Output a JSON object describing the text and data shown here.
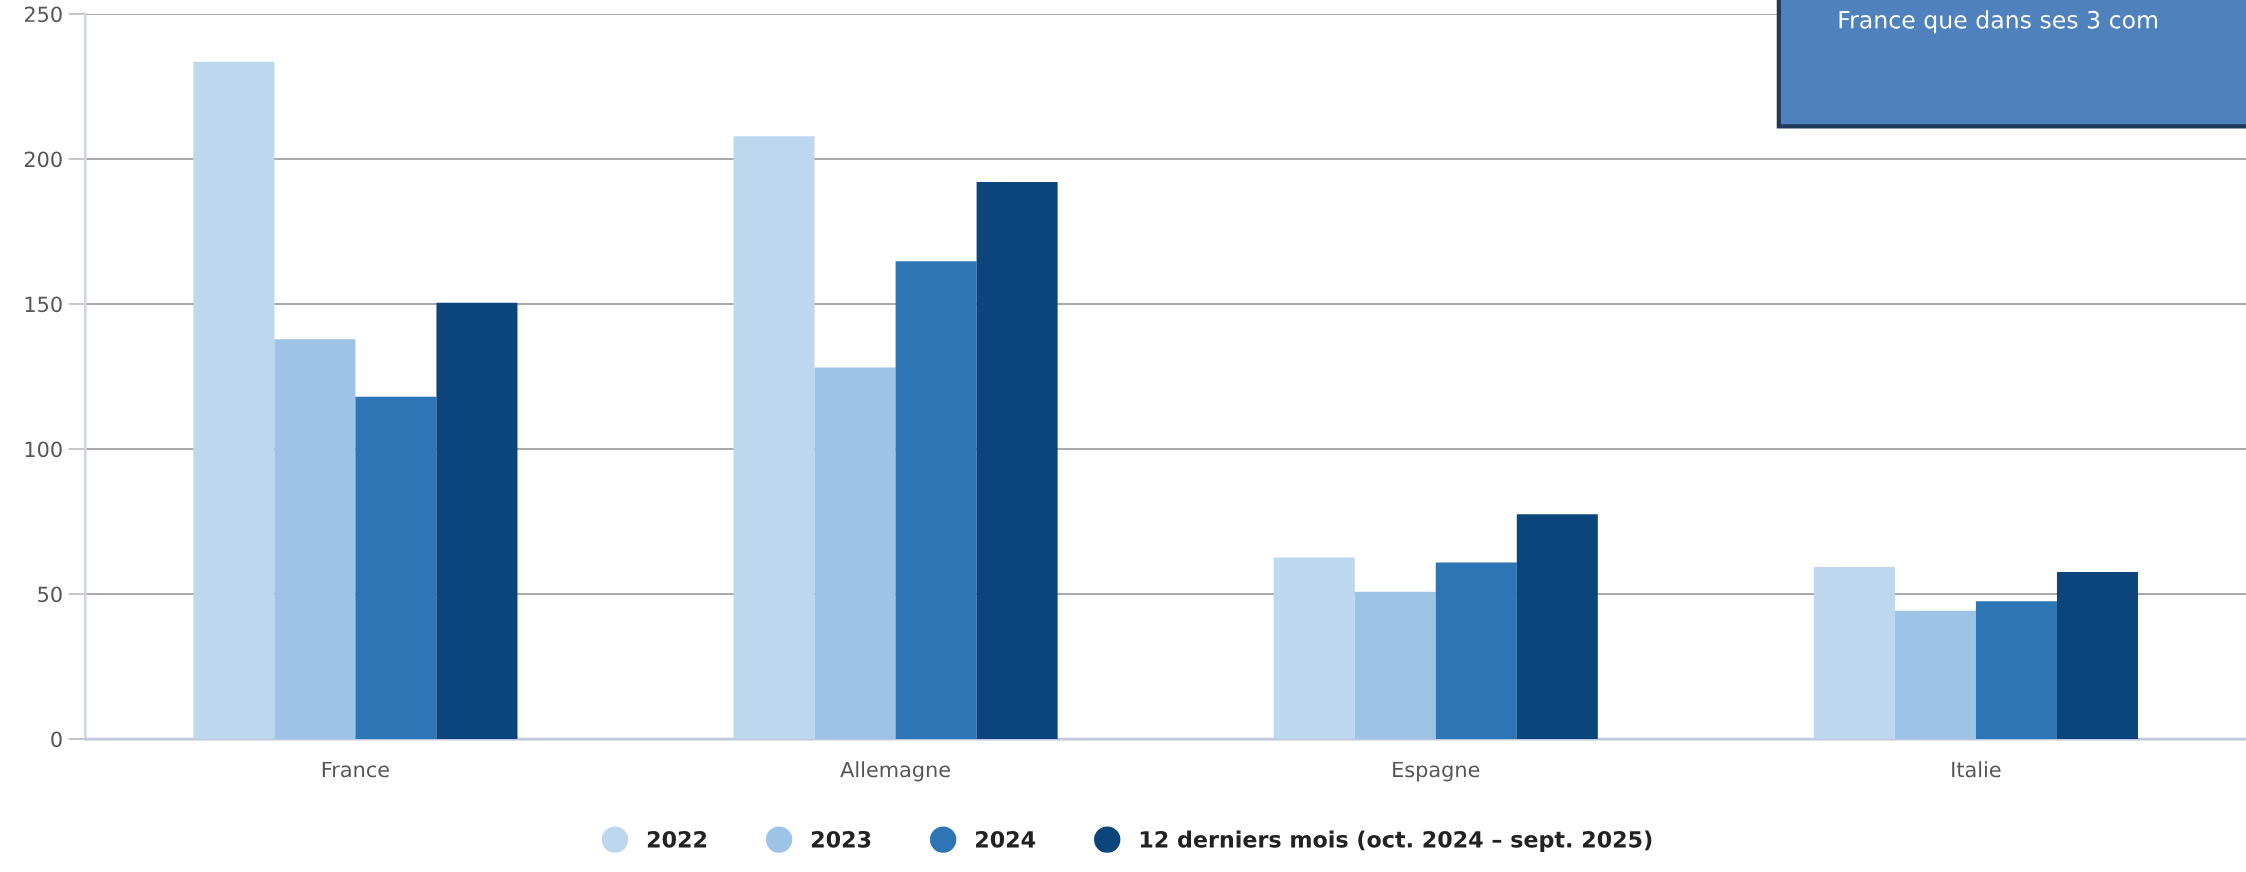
{
  "chart_data": {
    "type": "bar",
    "categories": [
      "France",
      "Allemagne",
      "Espagne",
      "Italie"
    ],
    "series": [
      {
        "name": "2022",
        "color": "#bdd7ee",
        "values": [
          233.5,
          207.8,
          62.6,
          59.3
        ]
      },
      {
        "name": "2023",
        "color": "#9dc3e6",
        "values": [
          137.8,
          128.1,
          50.8,
          44.2
        ]
      },
      {
        "name": "2024",
        "color": "#2e75b6",
        "values": [
          118,
          164.7,
          60.9,
          47.5
        ]
      },
      {
        "name": "12 derniers mois (oct. 2024 – sept. 2025)",
        "color": "#0b457c",
        "values": [
          150.4,
          192.1,
          77.5,
          57.6
        ]
      }
    ],
    "ylim": [
      0,
      250
    ],
    "yticks": [
      0,
      50,
      100,
      150,
      200,
      250
    ],
    "grid": "y",
    "legend": "bottom",
    "annotations": [
      "France que dans ses 3 com"
    ]
  }
}
